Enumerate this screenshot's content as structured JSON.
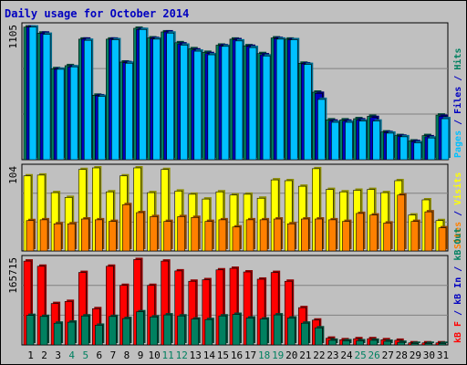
{
  "chart_data": {
    "type": "bar",
    "title": "Daily usage for October 2014",
    "categories": [
      "1",
      "2",
      "3",
      "4",
      "5",
      "6",
      "7",
      "8",
      "9",
      "10",
      "11",
      "12",
      "13",
      "14",
      "15",
      "16",
      "17",
      "18",
      "19",
      "20",
      "21",
      "22",
      "23",
      "24",
      "25",
      "26",
      "27",
      "28",
      "29",
      "30",
      "31"
    ],
    "weekend_categories": [
      "4",
      "5",
      "11",
      "12",
      "18",
      "19",
      "25",
      "26"
    ],
    "panels": [
      {
        "name": "hits_files_pages",
        "max_label": "1105",
        "ylim": [
          0,
          1105
        ],
        "axis_legend": [
          {
            "text": "Pages",
            "color": "#00c0ff"
          },
          {
            "text": " / ",
            "color": "#0000c0"
          },
          {
            "text": "Files",
            "color": "#0000c0"
          },
          {
            "text": " / ",
            "color": "#0000c0"
          },
          {
            "text": "Hits",
            "color": "#008060"
          }
        ],
        "series": [
          {
            "name": "Hits",
            "color": "#008060",
            "values": [
              1100,
              1050,
              755,
              780,
              1000,
              535,
              1000,
              810,
              1090,
              1010,
              1060,
              970,
              920,
              890,
              950,
              1000,
              945,
              880,
              1010,
              1000,
              800,
              560,
              330,
              330,
              340,
              360,
              230,
              200,
              155,
              200,
              370
            ]
          },
          {
            "name": "Files",
            "color": "#0000c0",
            "values": [
              1100,
              1050,
              750,
              770,
              1000,
              530,
              1000,
              805,
              1080,
              1005,
              1060,
              960,
              910,
              880,
              945,
              995,
              940,
              870,
              1005,
              995,
              795,
              550,
              320,
              320,
              330,
              350,
              225,
              195,
              150,
              190,
              360
            ]
          },
          {
            "name": "Pages",
            "color": "#00c0ff",
            "values": [
              1100,
              1040,
              750,
              770,
              990,
              525,
              995,
              800,
              1080,
              1000,
              1050,
              950,
              900,
              870,
              940,
              985,
              930,
              860,
              1000,
              995,
              790,
              500,
              310,
              310,
              320,
              320,
              220,
              190,
              140,
              180,
              340
            ]
          }
        ]
      },
      {
        "name": "visits_sites",
        "max_label": "104",
        "ylim": [
          0,
          104
        ],
        "axis_legend": [
          {
            "text": "Sites",
            "color": "#ff8000"
          },
          {
            "text": " / ",
            "color": "#0000c0"
          },
          {
            "text": "Visits",
            "color": "#ffff00"
          }
        ],
        "series": [
          {
            "name": "Visits",
            "color": "#ffff00",
            "values": [
              94,
              95,
              73,
              67,
              102,
              104,
              74,
              94,
              104,
              73,
              102,
              75,
              71,
              65,
              74,
              70,
              71,
              66,
              89,
              88,
              81,
              103,
              77,
              74,
              76,
              77,
              73,
              88,
              45,
              64,
              38
            ]
          },
          {
            "name": "Sites",
            "color": "#ff8000",
            "values": [
              38,
              39,
              34,
              34,
              40,
              39,
              37,
              58,
              48,
              43,
              37,
              43,
              42,
              37,
              39,
              30,
              39,
              39,
              40,
              34,
              40,
              40,
              39,
              37,
              47,
              45,
              35,
              70,
              37,
              49,
              29
            ]
          }
        ]
      },
      {
        "name": "kbytes",
        "max_label": "165715",
        "ylim": [
          0,
          165715
        ],
        "axis_legend": [
          {
            "text": "kB F",
            "color": "#ff0000"
          },
          {
            "text": " / ",
            "color": "#0000c0"
          },
          {
            "text": "kB In",
            "color": "#0000c0"
          },
          {
            "text": " / ",
            "color": "#0000c0"
          },
          {
            "text": "kB Out",
            "color": "#008060"
          }
        ],
        "series": [
          {
            "name": "kB F",
            "color": "#ff0000",
            "values": [
              162000,
              152000,
              80000,
              84000,
              140000,
              70000,
              152000,
              115000,
              165000,
              115000,
              162000,
              143000,
              123000,
              126000,
              145000,
              148000,
              141000,
              127000,
              140000,
              123000,
              72000,
              48000,
              13000,
              10000,
              12000,
              12000,
              10000,
              9000,
              4000,
              4000,
              4000
            ]
          },
          {
            "name": "kB Out",
            "color": "#008060",
            "values": [
              57000,
              55000,
              42000,
              44000,
              56000,
              38000,
              55000,
              51000,
              64000,
              54000,
              58000,
              56000,
              50000,
              49000,
              56000,
              59000,
              52000,
              50000,
              58000,
              52000,
              42000,
              33000,
              9000,
              8000,
              8000,
              9000,
              7000,
              5000,
              3000,
              3000,
              3000
            ]
          }
        ]
      }
    ],
    "colors": {
      "background": "#c0c0c0",
      "plot_background": "#c0c0c0",
      "title": "#0000c0",
      "weekday_label": "#000000",
      "weekend_label": "#008060",
      "gridline": "#808080"
    },
    "grid": true
  }
}
